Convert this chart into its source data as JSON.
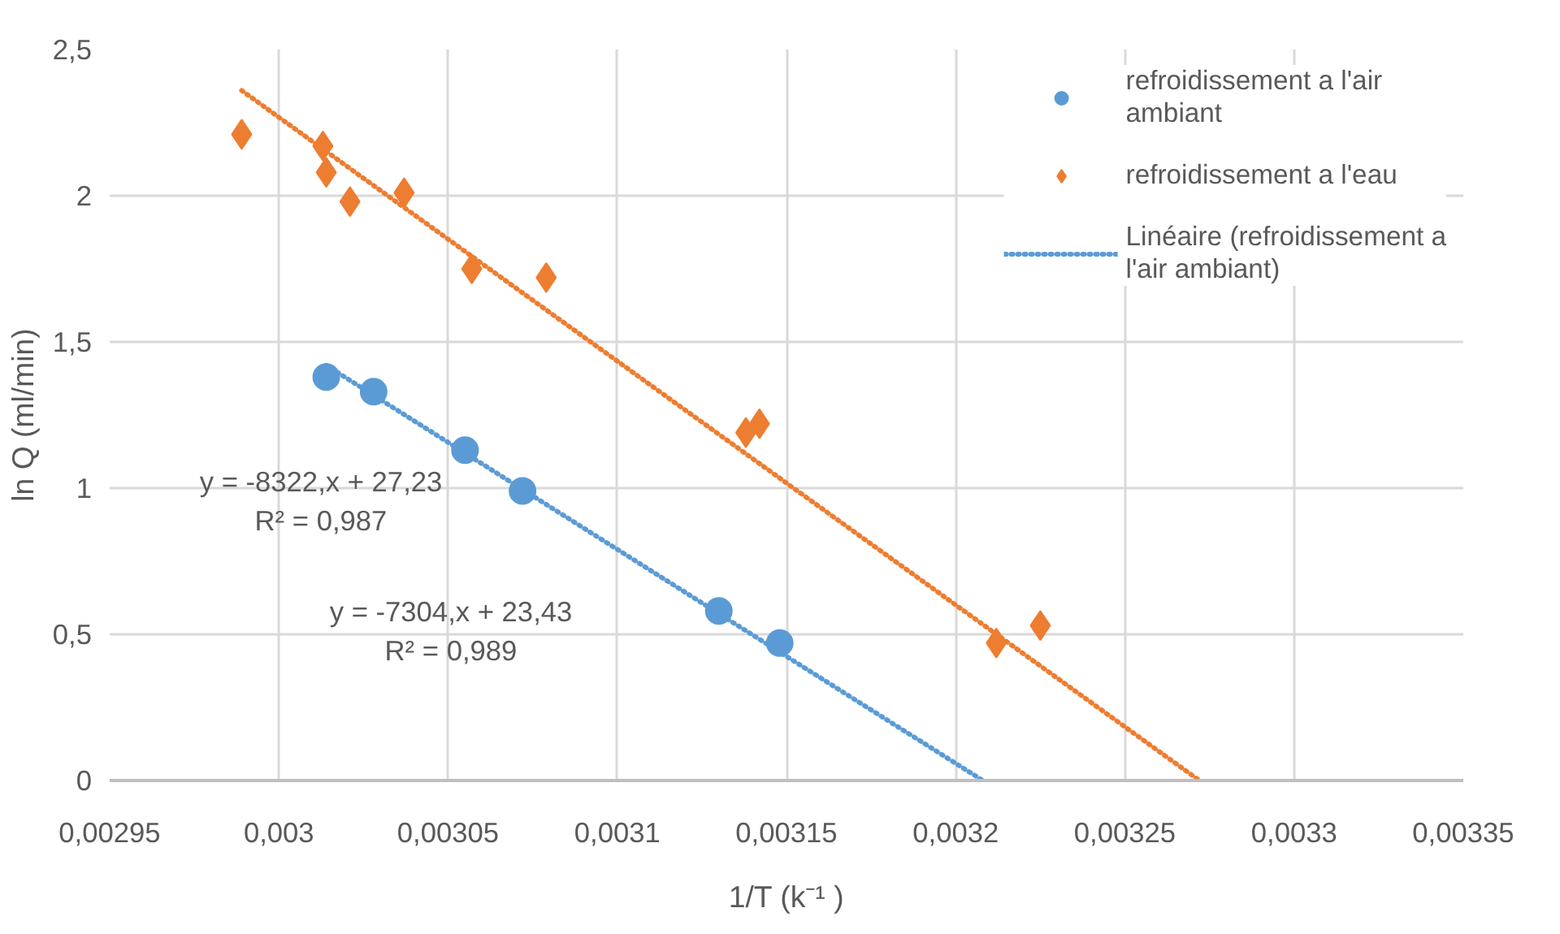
{
  "chart_data": {
    "type": "scatter",
    "xlabel": "1/T (k⁻¹ )",
    "ylabel": "ln Q (ml/min)",
    "xlim": [
      0.00295,
      0.00335
    ],
    "ylim": [
      0,
      2.5
    ],
    "xticks": [
      {
        "value": 0.00295,
        "label": "0,00295"
      },
      {
        "value": 0.003,
        "label": "0,003"
      },
      {
        "value": 0.00305,
        "label": "0,00305"
      },
      {
        "value": 0.0031,
        "label": "0,0031"
      },
      {
        "value": 0.00315,
        "label": "0,00315"
      },
      {
        "value": 0.0032,
        "label": "0,0032"
      },
      {
        "value": 0.00325,
        "label": "0,00325"
      },
      {
        "value": 0.0033,
        "label": "0,0033"
      },
      {
        "value": 0.00335,
        "label": "0,00335"
      }
    ],
    "yticks": [
      0,
      {
        "value": 0.5,
        "label": "0,5"
      },
      1,
      {
        "value": 1.5,
        "label": "1,5"
      },
      2,
      {
        "value": 2.5,
        "label": "2,5"
      }
    ],
    "grid": true,
    "legend": "top right",
    "series": [
      {
        "name": "refroidissement a l'air ambiant",
        "color": "#5b9bd5",
        "marker": "circle",
        "x": [
          0.003014,
          0.003028,
          0.003055,
          0.003072,
          0.00313,
          0.003148
        ],
        "values": [
          1.38,
          1.33,
          1.13,
          0.99,
          0.58,
          0.47
        ]
      },
      {
        "name": "refroidissement a l'eau",
        "color": "#ed7d31",
        "marker": "diamond",
        "x": [
          0.002989,
          0.003013,
          0.003014,
          0.003021,
          0.003037,
          0.003057,
          0.003079,
          0.003138,
          0.003142,
          0.003212,
          0.003225
        ],
        "values": [
          2.21,
          2.17,
          2.08,
          1.98,
          2.01,
          1.75,
          1.72,
          1.19,
          1.22,
          0.47,
          0.53
        ]
      },
      {
        "name": "Linéaire (refroidissement a l'air ambiant)",
        "type": "line",
        "line_style": "dotted",
        "color": "#5b9bd5",
        "x": [
          0.003014,
          0.003208
        ],
        "values": [
          1.42,
          0.0
        ]
      },
      {
        "type": "line",
        "line_style": "dotted",
        "color": "#ed7d31",
        "x": [
          0.002989,
          0.003272
        ],
        "values": [
          2.36,
          0.0
        ]
      }
    ],
    "annotations": [
      "y = -8322,x + 27,23\nR² = 0,987",
      "y = -7304,x + 23,43\nR² = 0,989"
    ]
  }
}
